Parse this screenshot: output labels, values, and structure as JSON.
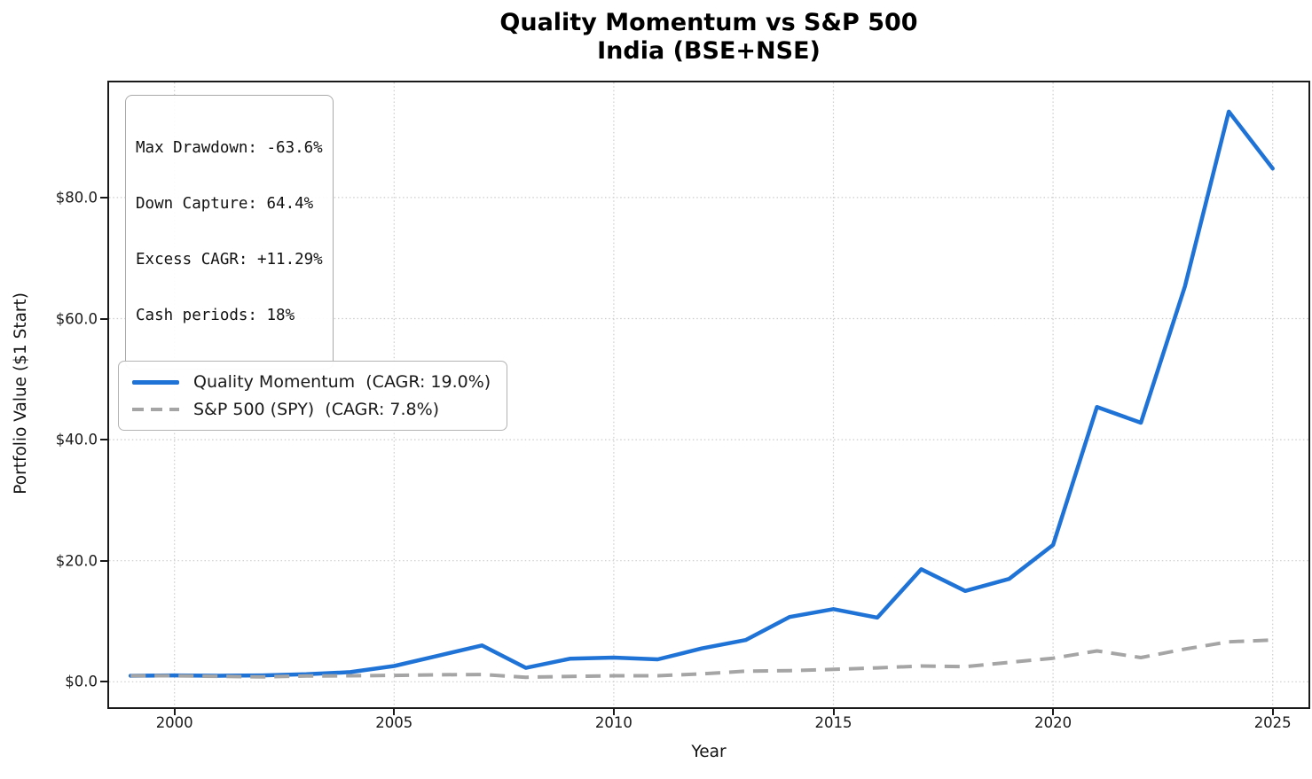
{
  "title": {
    "line1": "Quality Momentum vs S&P 500",
    "line2": "India (BSE+NSE)"
  },
  "stats_box": {
    "lines": [
      "Max Drawdown: -63.6%",
      "Down Capture: 64.4%",
      "Excess CAGR: +11.29%",
      "Cash periods: 18%"
    ]
  },
  "legend": {
    "items": [
      {
        "label": "Quality Momentum  (CAGR: 19.0%)",
        "color": "#2073d6",
        "style": "solid"
      },
      {
        "label": "S&P 500 (SPY)  (CAGR: 7.8%)",
        "color": "#a5a5a5",
        "style": "dashed"
      }
    ]
  },
  "axes": {
    "xlabel": "Year",
    "ylabel": "Portfolio Value ($1 Start)",
    "x_ticks": [
      "2000",
      "2005",
      "2010",
      "2015",
      "2020",
      "2025"
    ],
    "y_ticks": [
      "$0.0",
      "$20.0",
      "$40.0",
      "$60.0",
      "$80.0"
    ]
  },
  "chart_data": {
    "type": "line",
    "title": "Quality Momentum vs S&P 500 — India (BSE+NSE)",
    "xlabel": "Year",
    "ylabel": "Portfolio Value ($1 Start)",
    "x": [
      1999,
      2000,
      2001,
      2002,
      2003,
      2004,
      2005,
      2006,
      2007,
      2008,
      2009,
      2010,
      2011,
      2012,
      2013,
      2014,
      2015,
      2016,
      2017,
      2018,
      2019,
      2020,
      2021,
      2022,
      2023,
      2024,
      2025
    ],
    "series": [
      {
        "name": "Quality Momentum (CAGR: 19.0%)",
        "color": "#2073d6",
        "line_style": "solid",
        "line_width": 4.5,
        "values": [
          1.0,
          1.05,
          1.0,
          1.05,
          1.25,
          1.6,
          2.6,
          4.3,
          6.0,
          2.3,
          3.8,
          4.0,
          3.7,
          5.5,
          6.9,
          10.7,
          12.0,
          10.6,
          18.6,
          15.0,
          17.0,
          22.6,
          45.4,
          42.8,
          65.3,
          94.2,
          84.8
        ]
      },
      {
        "name": "S&P 500 (SPY) (CAGR: 7.8%)",
        "color": "#a5a5a5",
        "line_style": "dashed",
        "line_width": 4,
        "values": [
          1.0,
          1.0,
          0.9,
          0.8,
          0.95,
          1.0,
          1.05,
          1.15,
          1.2,
          0.75,
          0.9,
          1.0,
          1.0,
          1.3,
          1.75,
          1.85,
          2.05,
          2.3,
          2.6,
          2.5,
          3.2,
          3.9,
          5.1,
          4.0,
          5.4,
          6.6,
          6.9
        ]
      }
    ],
    "x_tick_values": [
      2000,
      2005,
      2010,
      2015,
      2020,
      2025
    ],
    "y_tick_values": [
      0,
      20,
      40,
      60,
      80
    ],
    "xlim": [
      1998.5,
      2025.8
    ],
    "ylim": [
      -4,
      99
    ],
    "grid": "dotted",
    "legend_position": "center-left",
    "annotations": [
      "Max Drawdown: -63.6%",
      "Down Capture: 64.4%",
      "Excess CAGR: +11.29%",
      "Cash periods: 18%"
    ]
  },
  "colors": {
    "quality_momentum": "#2073d6",
    "sp500": "#a5a5a5",
    "grid": "#cccccc",
    "spine": "#1a1a1a",
    "box_border": "#b3b3b3"
  }
}
